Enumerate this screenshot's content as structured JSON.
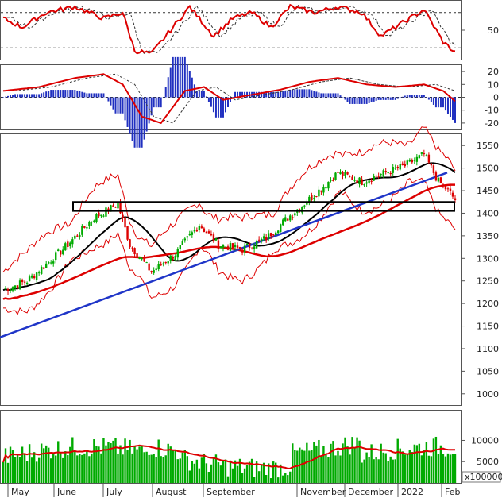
{
  "chart_data": {
    "type": "stock-chart",
    "x_axis": {
      "months": [
        "May",
        "June",
        "July",
        "August",
        "September",
        "November",
        "December",
        "2022",
        "Feb"
      ]
    },
    "panels": [
      {
        "name": "stochastic",
        "y_ticks": [
          "50"
        ],
        "ylim": [
          0,
          100
        ],
        "reference_lines": [
          20,
          80
        ],
        "series": [
          {
            "color": "#dd0000",
            "style": "solid"
          },
          {
            "color": "#333333",
            "style": "dashed"
          }
        ]
      },
      {
        "name": "macd",
        "y_ticks": [
          "20",
          "10",
          "0",
          "-10",
          "-20"
        ],
        "ylim": [
          -25,
          25
        ],
        "reference_lines": [
          0
        ],
        "series": [
          {
            "color": "#dd0000",
            "style": "solid"
          },
          {
            "color": "#333333",
            "style": "dashed"
          },
          {
            "color": "#2030c0",
            "style": "histogram"
          }
        ]
      },
      {
        "name": "price",
        "y_ticks": [
          "1550",
          "1500",
          "1450",
          "1400",
          "1350",
          "1300",
          "1250",
          "1200",
          "1150",
          "1100",
          "1050",
          "1000"
        ],
        "ylim": [
          975,
          1575
        ],
        "candle_colors": {
          "up": "#00aa00",
          "down": "#dd0000"
        },
        "overlays": [
          {
            "label": "moving average",
            "color": "#000000"
          },
          {
            "label": "moving average",
            "color": "#dd0000"
          },
          {
            "label": "trendline",
            "color": "#1f35c8"
          },
          {
            "label": "bollinger bands",
            "color": "#dd0000"
          }
        ],
        "support_zone": [
          1405,
          1425
        ]
      },
      {
        "name": "volume",
        "y_ticks": [
          "10000",
          "5000"
        ],
        "unit_label": "x100000",
        "ylim": [
          0,
          17000
        ],
        "bar_color": "#00aa00",
        "ma_color": "#dd0000"
      }
    ]
  }
}
